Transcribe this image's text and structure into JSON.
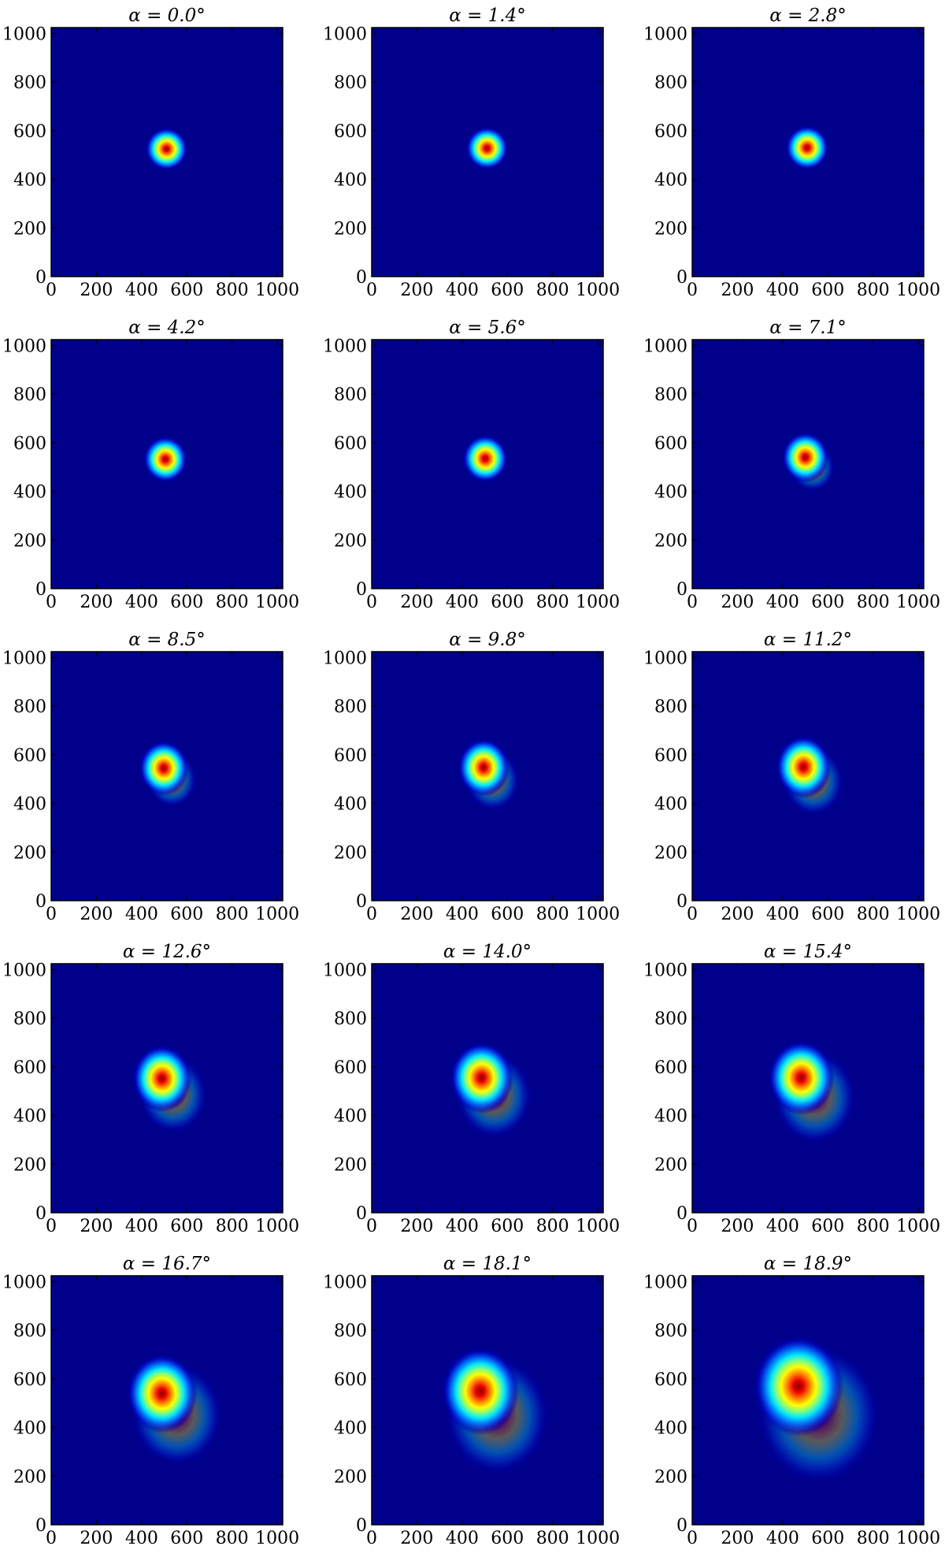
{
  "chart_data": {
    "type": "heatmap",
    "colormap": "jet",
    "background_color": "#00008b",
    "xlim": [
      0,
      1024
    ],
    "ylim": [
      0,
      1024
    ],
    "xticks": [
      0,
      200,
      400,
      600,
      800,
      1000
    ],
    "yticks": [
      0,
      200,
      400,
      600,
      800,
      1000
    ],
    "grid": false,
    "rows": 5,
    "cols": 3,
    "panels": [
      {
        "title": "α = 0.0°",
        "alpha": 0.0,
        "peak": [
          510,
          525
        ],
        "spread": [
          62,
          58
        ]
      },
      {
        "title": "α = 1.4°",
        "alpha": 1.4,
        "peak": [
          510,
          528
        ],
        "spread": [
          62,
          58
        ]
      },
      {
        "title": "α = 2.8°",
        "alpha": 2.8,
        "peak": [
          508,
          530
        ],
        "spread": [
          63,
          60
        ]
      },
      {
        "title": "α = 4.2°",
        "alpha": 4.2,
        "peak": [
          505,
          532
        ],
        "spread": [
          64,
          62
        ]
      },
      {
        "title": "α = 5.6°",
        "alpha": 5.6,
        "peak": [
          502,
          535
        ],
        "spread": [
          66,
          64
        ]
      },
      {
        "title": "α = 7.1°",
        "alpha": 7.1,
        "peak": [
          500,
          540
        ],
        "spread": [
          68,
          68
        ]
      },
      {
        "title": "α = 8.5°",
        "alpha": 8.5,
        "peak": [
          498,
          545
        ],
        "spread": [
          72,
          74
        ]
      },
      {
        "title": "α = 9.8°",
        "alpha": 9.8,
        "peak": [
          495,
          548
        ],
        "spread": [
          75,
          78
        ]
      },
      {
        "title": "α = 11.2°",
        "alpha": 11.2,
        "peak": [
          492,
          550
        ],
        "spread": [
          80,
          84
        ]
      },
      {
        "title": "α = 12.6°",
        "alpha": 12.6,
        "peak": [
          490,
          552
        ],
        "spread": [
          86,
          90
        ]
      },
      {
        "title": "α = 14.0°",
        "alpha": 14.0,
        "peak": [
          486,
          555
        ],
        "spread": [
          92,
          96
        ]
      },
      {
        "title": "α = 15.4°",
        "alpha": 15.4,
        "peak": [
          482,
          555
        ],
        "spread": [
          96,
          100
        ]
      },
      {
        "title": "α = 16.7°",
        "alpha": 16.7,
        "peak": [
          490,
          540
        ],
        "spread": [
          102,
          106
        ]
      },
      {
        "title": "α = 18.1°",
        "alpha": 18.1,
        "peak": [
          480,
          550
        ],
        "spread": [
          112,
          118
        ]
      },
      {
        "title": "α = 18.9°",
        "alpha": 18.9,
        "peak": [
          470,
          570
        ],
        "spread": [
          130,
          135
        ]
      }
    ]
  }
}
